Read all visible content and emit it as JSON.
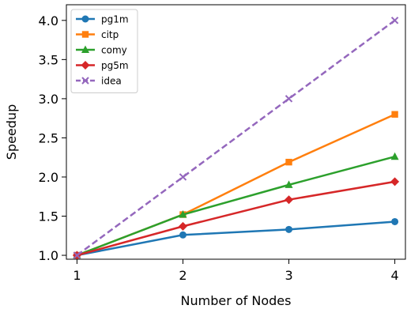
{
  "chart_data": {
    "type": "line",
    "title": "",
    "xlabel": "Number of Nodes",
    "ylabel": "Speedup",
    "x": [
      1,
      2,
      3,
      4
    ],
    "xlim": [
      0.9,
      4.1
    ],
    "ylim": [
      0.95,
      4.2
    ],
    "xticks": [
      1,
      2,
      3,
      4
    ],
    "yticks": [
      1.0,
      1.5,
      2.0,
      2.5,
      3.0,
      3.5,
      4.0
    ],
    "ytick_labels": [
      "1.0",
      "1.5",
      "2.0",
      "2.5",
      "3.0",
      "3.5",
      "4.0"
    ],
    "grid": false,
    "legend_position": "top-left",
    "series": [
      {
        "name": "pg1m",
        "values": [
          1.0,
          1.26,
          1.33,
          1.43
        ],
        "color": "#1f77b4",
        "marker": "circle",
        "linestyle": "solid"
      },
      {
        "name": "citp",
        "values": [
          1.0,
          1.52,
          2.19,
          2.8
        ],
        "color": "#ff7f0e",
        "marker": "square",
        "linestyle": "solid"
      },
      {
        "name": "comy",
        "values": [
          1.0,
          1.52,
          1.9,
          2.26
        ],
        "color": "#2ca02c",
        "marker": "triangle",
        "linestyle": "solid"
      },
      {
        "name": "pg5m",
        "values": [
          1.0,
          1.37,
          1.71,
          1.94
        ],
        "color": "#d62728",
        "marker": "diamond",
        "linestyle": "solid"
      },
      {
        "name": "idea",
        "values": [
          1.0,
          2.0,
          3.0,
          4.0
        ],
        "color": "#9467bd",
        "marker": "x",
        "linestyle": "dashed"
      }
    ]
  }
}
